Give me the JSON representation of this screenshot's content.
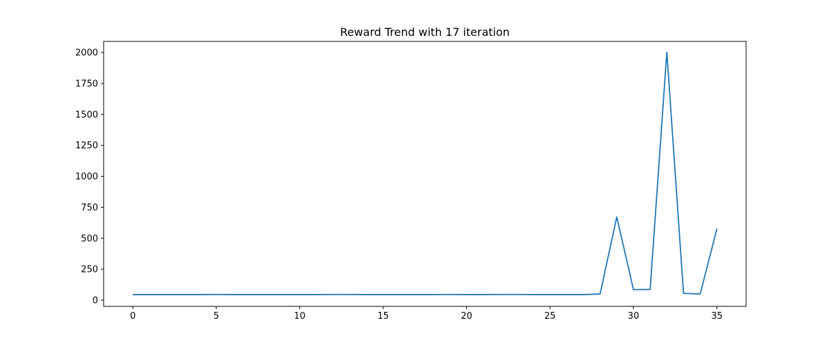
{
  "chart_data": {
    "type": "line",
    "title": "Reward Trend with 17 iteration",
    "xlabel": "",
    "ylabel": "",
    "xlim": [
      -1.75,
      36.75
    ],
    "ylim": [
      -50,
      2090
    ],
    "x_ticks": [
      0,
      5,
      10,
      15,
      20,
      25,
      30,
      35
    ],
    "y_ticks": [
      0,
      250,
      500,
      750,
      1000,
      1250,
      1500,
      1750,
      2000
    ],
    "grid": false,
    "legend": "none",
    "series": [
      {
        "color": "#1f77b4",
        "x": [
          0,
          1,
          2,
          3,
          4,
          5,
          6,
          7,
          8,
          9,
          10,
          11,
          12,
          13,
          14,
          15,
          16,
          17,
          18,
          19,
          20,
          21,
          22,
          23,
          24,
          25,
          26,
          27,
          28,
          29,
          30,
          31,
          32,
          33,
          34,
          35
        ],
        "y": [
          45,
          45,
          45,
          45,
          45,
          46,
          45,
          45,
          45,
          45,
          45,
          45,
          46,
          46,
          45,
          45,
          45,
          45,
          45,
          46,
          45,
          45,
          46,
          46,
          45,
          45,
          45,
          45,
          50,
          672,
          85,
          87,
          2003,
          55,
          50,
          577
        ]
      }
    ]
  }
}
